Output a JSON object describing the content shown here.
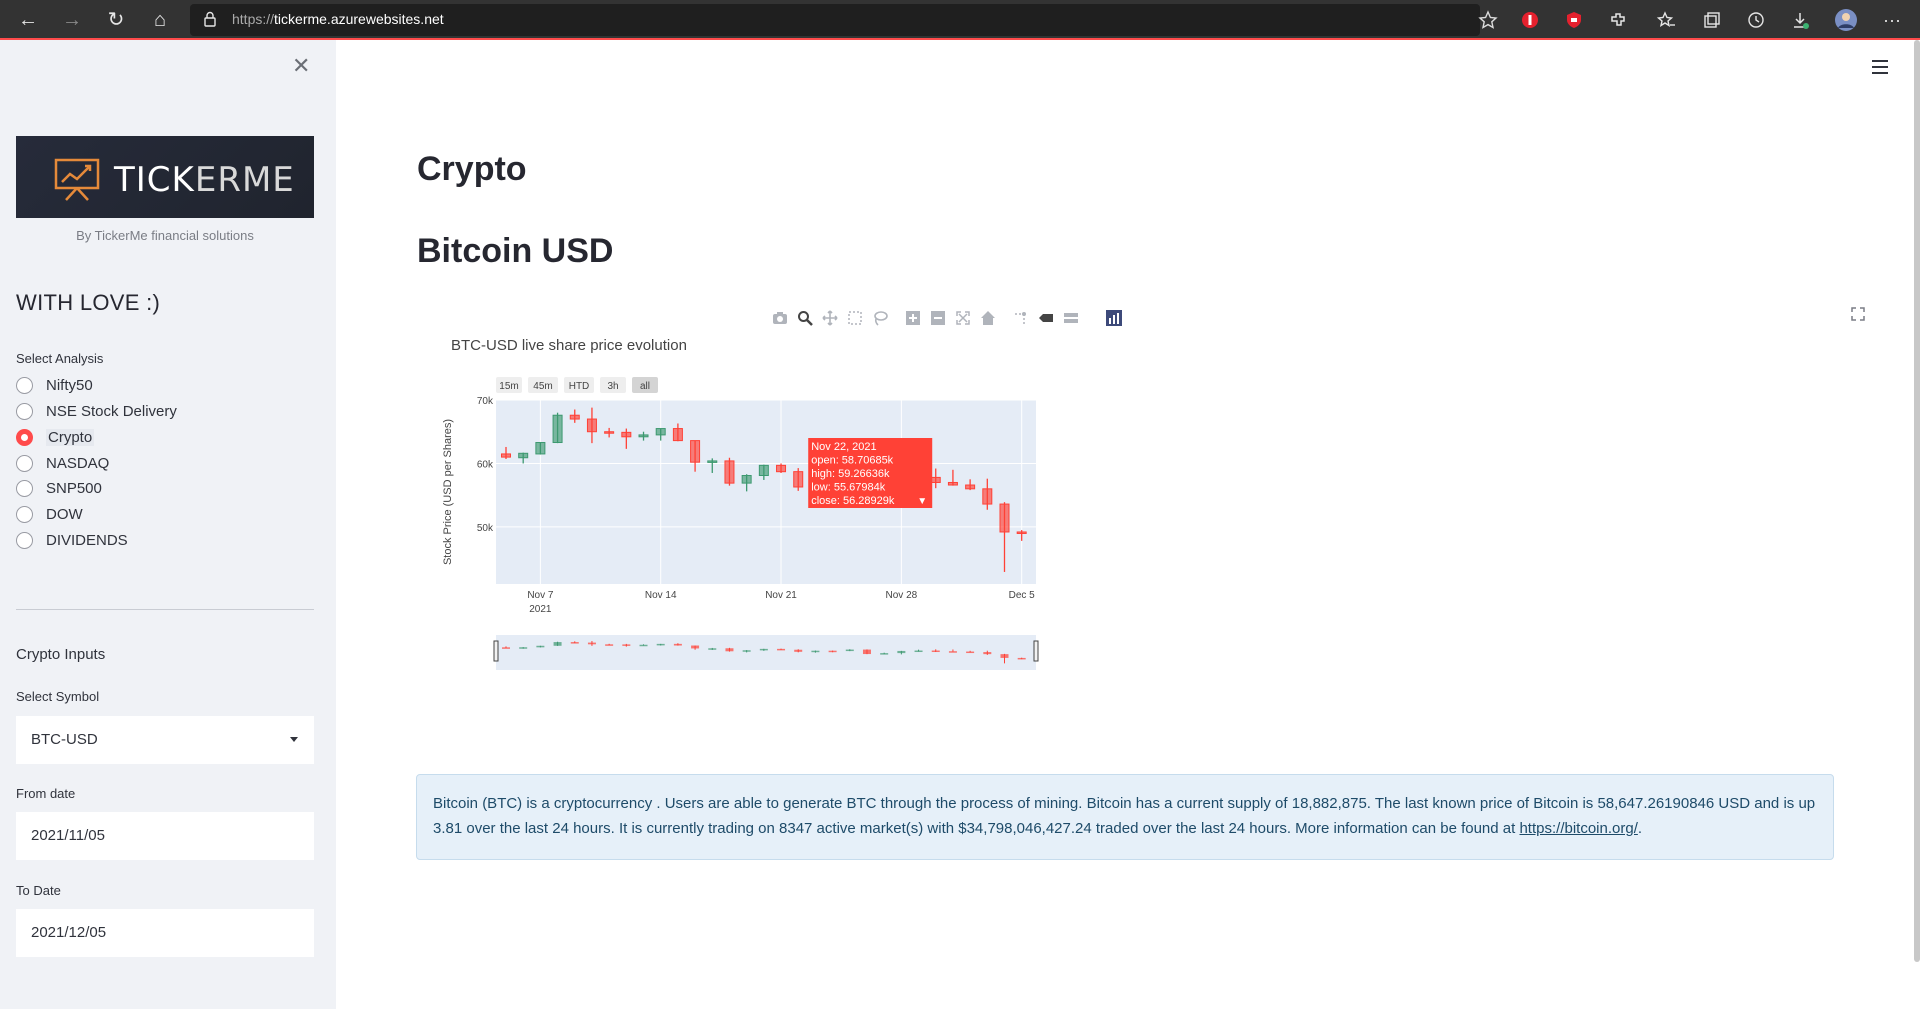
{
  "browser": {
    "url_protocol": "https://",
    "url_host": "tickerme.azurewebsites.net"
  },
  "sidebar": {
    "logo_text_a": "TICK",
    "logo_text_b": "ERME",
    "byline": "By TickerMe financial solutions",
    "title": "WITH LOVE :)",
    "select_analysis_label": "Select Analysis",
    "analysis_options": [
      "Nifty50",
      "NSE Stock Delivery",
      "Crypto",
      "NASDAQ",
      "SNP500",
      "DOW",
      "DIVIDENDS"
    ],
    "selected_analysis": "Crypto",
    "crypto_inputs_label": "Crypto Inputs",
    "symbol_label": "Select Symbol",
    "symbol_value": "BTC-USD",
    "from_label": "From date",
    "from_value": "2021/11/05",
    "to_label": "To Date",
    "to_value": "2021/12/05"
  },
  "main": {
    "page_title": "Crypto",
    "asset_title": "Bitcoin USD",
    "info_text": "Bitcoin (BTC) is a cryptocurrency . Users are able to generate BTC through the process of mining. Bitcoin has a current supply of 18,882,875. The last known price of Bitcoin is 58,647.26190846 USD and is up 3.81 over the last 24 hours. It is currently trading on 8347 active market(s) with $34,798,046,427.24 traded over the last 24 hours. More information can be found at ",
    "info_link": "https://bitcoin.org/",
    "info_end": "."
  },
  "modebar_icons": [
    "camera-icon",
    "zoom-icon",
    "pan-icon",
    "box-select-icon",
    "lasso-icon",
    "zoom-in-icon",
    "zoom-out-icon",
    "autoscale-icon",
    "reset-axes-icon",
    "spike-lines-icon",
    "hover-closest-icon",
    "hover-compare-icon",
    "plotly-logo-icon"
  ],
  "chart_data": {
    "type": "candlestick",
    "title": "BTC-USD live share price evolution",
    "ylabel": "Stock Price (USD per Shares)",
    "range_buttons": [
      "15m",
      "45m",
      "HTD",
      "3h",
      "all"
    ],
    "active_range_button": "all",
    "y_ticks": [
      "50k",
      "60k",
      "70k"
    ],
    "ylim": [
      41000,
      70000
    ],
    "x_ticks": [
      "Nov 7",
      "Nov 14",
      "Nov 21",
      "Nov 28",
      "Dec 5"
    ],
    "x_tick_sub": "2021",
    "xlim": [
      "2021-11-05",
      "2021-12-05"
    ],
    "colors": {
      "up": "#3d9970",
      "down": "#ff4136"
    },
    "candles": [
      {
        "date": "2021-11-05",
        "open": 61500,
        "high": 62600,
        "low": 60700,
        "close": 61000
      },
      {
        "date": "2021-11-06",
        "open": 60900,
        "high": 61700,
        "low": 60000,
        "close": 61600
      },
      {
        "date": "2021-11-07",
        "open": 61500,
        "high": 63300,
        "low": 61400,
        "close": 63300
      },
      {
        "date": "2021-11-08",
        "open": 63300,
        "high": 68000,
        "low": 63200,
        "close": 67600
      },
      {
        "date": "2021-11-09",
        "open": 67600,
        "high": 68500,
        "low": 66400,
        "close": 67000
      },
      {
        "date": "2021-11-10",
        "open": 67000,
        "high": 68800,
        "low": 63200,
        "close": 65000
      },
      {
        "date": "2021-11-11",
        "open": 65000,
        "high": 65600,
        "low": 64100,
        "close": 64900
      },
      {
        "date": "2021-11-12",
        "open": 64900,
        "high": 65500,
        "low": 62300,
        "close": 64200
      },
      {
        "date": "2021-11-13",
        "open": 64200,
        "high": 65000,
        "low": 63600,
        "close": 64500
      },
      {
        "date": "2021-11-14",
        "open": 64500,
        "high": 65500,
        "low": 63600,
        "close": 65500
      },
      {
        "date": "2021-11-15",
        "open": 65500,
        "high": 66300,
        "low": 63500,
        "close": 63600
      },
      {
        "date": "2021-11-16",
        "open": 63600,
        "high": 63600,
        "low": 58700,
        "close": 60200
      },
      {
        "date": "2021-11-17",
        "open": 60200,
        "high": 60800,
        "low": 58500,
        "close": 60400
      },
      {
        "date": "2021-11-18",
        "open": 60400,
        "high": 60900,
        "low": 56500,
        "close": 56900
      },
      {
        "date": "2021-11-19",
        "open": 56900,
        "high": 58300,
        "low": 55600,
        "close": 58100
      },
      {
        "date": "2021-11-20",
        "open": 58100,
        "high": 59800,
        "low": 57400,
        "close": 59700
      },
      {
        "date": "2021-11-21",
        "open": 59700,
        "high": 60000,
        "low": 58500,
        "close": 58700
      },
      {
        "date": "2021-11-22",
        "open": 58706.85,
        "high": 59266.36,
        "low": 55679.84,
        "close": 56289.29
      },
      {
        "date": "2021-11-23",
        "open": 56300,
        "high": 57800,
        "low": 55300,
        "close": 57600
      },
      {
        "date": "2021-11-24",
        "open": 57600,
        "high": 57800,
        "low": 55800,
        "close": 57200
      },
      {
        "date": "2021-11-25",
        "open": 57200,
        "high": 59300,
        "low": 57100,
        "close": 58900
      },
      {
        "date": "2021-11-26",
        "open": 58900,
        "high": 59100,
        "low": 53600,
        "close": 53700
      },
      {
        "date": "2021-11-27",
        "open": 53700,
        "high": 55300,
        "low": 53600,
        "close": 54800
      },
      {
        "date": "2021-11-28",
        "open": 54800,
        "high": 57400,
        "low": 53300,
        "close": 57300
      },
      {
        "date": "2021-11-29",
        "open": 57300,
        "high": 58800,
        "low": 56800,
        "close": 57800
      },
      {
        "date": "2021-11-30",
        "open": 57800,
        "high": 59200,
        "low": 56100,
        "close": 57000
      },
      {
        "date": "2021-12-01",
        "open": 57000,
        "high": 59000,
        "low": 56500,
        "close": 56600
      },
      {
        "date": "2021-12-02",
        "open": 56600,
        "high": 57500,
        "low": 55800,
        "close": 56000
      },
      {
        "date": "2021-12-03",
        "open": 56000,
        "high": 57600,
        "low": 52700,
        "close": 53600
      },
      {
        "date": "2021-12-04",
        "open": 53600,
        "high": 53900,
        "low": 42900,
        "close": 49200
      },
      {
        "date": "2021-12-05",
        "open": 49200,
        "high": 49500,
        "low": 47800,
        "close": 49000
      }
    ],
    "hover": {
      "date": "Nov 22, 2021",
      "open": "open: 58.70685k",
      "high": "high: 59.26636k",
      "low": "low: 55.67984k",
      "close": "close: 56.28929k"
    }
  }
}
